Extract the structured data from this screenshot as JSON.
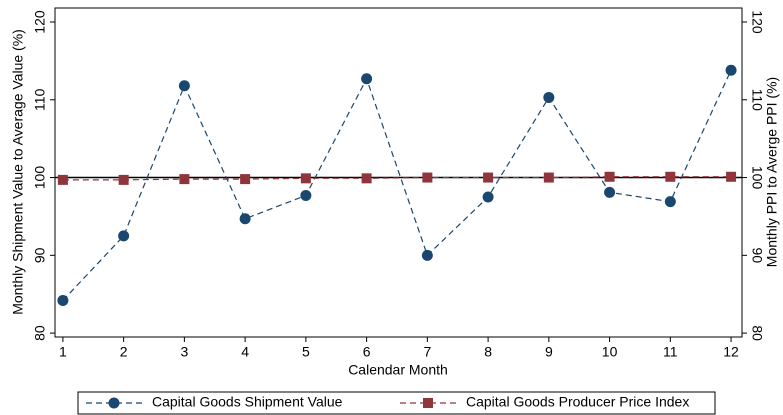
{
  "chart_data": {
    "type": "line",
    "x_label": "Calendar Month",
    "y_label": "Monthly  Shipment Value to Average Value (%)",
    "y2_label": "Monthly PPI to Averge PPI (%)",
    "x": [
      1,
      2,
      3,
      4,
      5,
      6,
      7,
      8,
      9,
      10,
      11,
      12
    ],
    "xlim": [
      0.87,
      12.18
    ],
    "xticks": [
      1,
      2,
      3,
      4,
      5,
      6,
      7,
      8,
      9,
      10,
      11,
      12
    ],
    "ylim": [
      79.5,
      121.8
    ],
    "yticks": [
      80,
      90,
      100,
      110,
      120
    ],
    "y2lim": [
      79.5,
      121.8
    ],
    "y2ticks": [
      80,
      90,
      100,
      110,
      120
    ],
    "hline": 100,
    "legend": "bottom",
    "series": [
      {
        "name": "Capital Goods Shipment Value",
        "color": "#1a476f",
        "marker": "circle",
        "values": [
          84.2,
          92.5,
          111.8,
          94.7,
          97.7,
          112.7,
          90.0,
          97.5,
          110.3,
          98.1,
          96.9,
          113.8
        ]
      },
      {
        "name": "Capital Goods Producer Price Index",
        "color": "#90353b",
        "marker": "square",
        "axis": "y2",
        "values": [
          99.7,
          99.7,
          99.8,
          99.8,
          99.9,
          99.9,
          100.0,
          100.0,
          100.0,
          100.1,
          100.1,
          100.1
        ]
      }
    ]
  }
}
